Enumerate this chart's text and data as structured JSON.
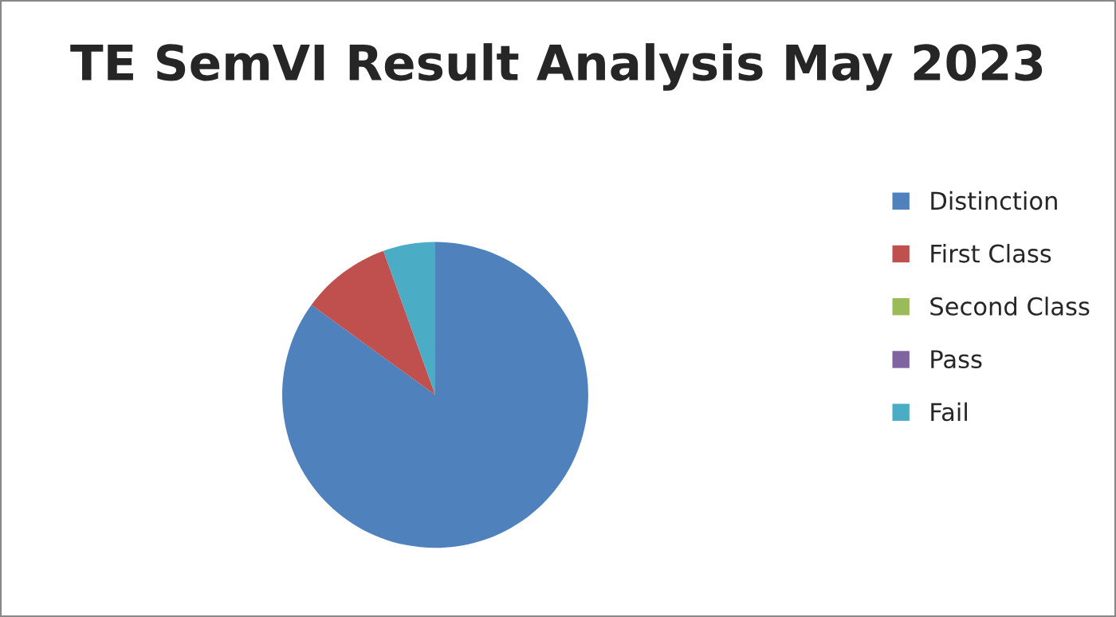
{
  "chart_data": {
    "type": "pie",
    "title": "TE SemVI Result Analysis May 2023",
    "categories": [
      "Distinction",
      "First Class",
      "Second Class",
      "Pass",
      "Fail"
    ],
    "values": [
      85,
      9.5,
      0,
      0,
      5.5
    ],
    "colors": [
      "#4f81bd",
      "#c0504d",
      "#9bbb59",
      "#8064a2",
      "#4bacc6"
    ],
    "legend": "right"
  }
}
